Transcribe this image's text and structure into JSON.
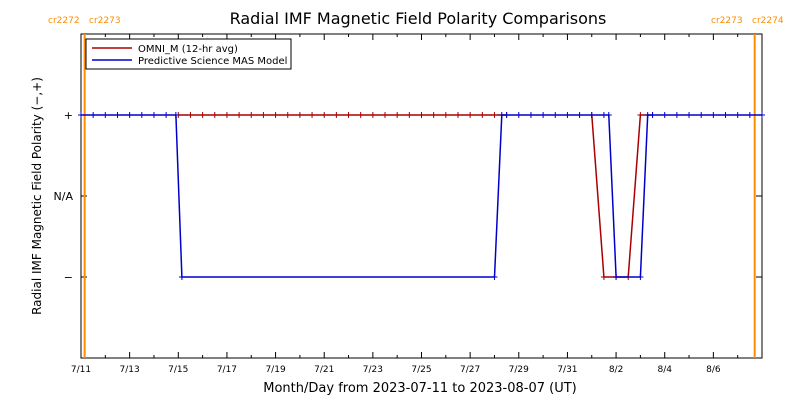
{
  "colors": {
    "omni": "#aa0000",
    "model": "#0000cc",
    "cr_line": "#ff8c00",
    "axis": "#000000"
  },
  "chart_data": {
    "type": "line",
    "title": "Radial IMF Magnetic Field Polarity Comparisons",
    "xlabel": "Month/Day from 2023-07-11 to 2023-08-07 (UT)",
    "ylabel": "Radial IMF Magnetic Field Polarity (−,+)",
    "x_start": "2023-07-11",
    "x_end": "2023-08-08",
    "xlim_days": [
      0,
      28
    ],
    "x_tick_labels": [
      "7/11",
      "7/13",
      "7/15",
      "7/17",
      "7/19",
      "7/21",
      "7/23",
      "7/25",
      "7/27",
      "7/29",
      "7/31",
      "8/2",
      "8/4",
      "8/6"
    ],
    "x_tick_days": [
      0,
      2,
      4,
      6,
      8,
      10,
      12,
      14,
      16,
      18,
      20,
      22,
      24,
      26
    ],
    "ylim": [
      -2,
      2
    ],
    "y_ticks": [
      {
        "value": 1,
        "label": "+"
      },
      {
        "value": 0,
        "label": "N/A"
      },
      {
        "value": -1,
        "label": "−"
      }
    ],
    "legend_position": "top-left",
    "carrington_markers": [
      {
        "day": 0.15,
        "left_label": "cr2272",
        "right_label": "cr2273"
      },
      {
        "day": 27.7,
        "left_label": "cr2273",
        "right_label": "cr2274"
      }
    ],
    "series": [
      {
        "name": "OMNI_M (12-hr avg)",
        "marker": "plus",
        "points": [
          [
            4.0,
            1
          ],
          [
            4.5,
            1
          ],
          [
            5.0,
            1
          ],
          [
            5.5,
            1
          ],
          [
            6.0,
            1
          ],
          [
            6.5,
            1
          ],
          [
            7.0,
            1
          ],
          [
            7.5,
            1
          ],
          [
            8.0,
            1
          ],
          [
            8.5,
            1
          ],
          [
            9.0,
            1
          ],
          [
            9.5,
            1
          ],
          [
            10.0,
            1
          ],
          [
            10.5,
            1
          ],
          [
            11.0,
            1
          ],
          [
            11.5,
            1
          ],
          [
            12.0,
            1
          ],
          [
            12.5,
            1
          ],
          [
            13.0,
            1
          ],
          [
            13.5,
            1
          ],
          [
            14.0,
            1
          ],
          [
            14.5,
            1
          ],
          [
            15.0,
            1
          ],
          [
            15.5,
            1
          ],
          [
            16.0,
            1
          ],
          [
            16.5,
            1
          ],
          [
            17.0,
            1
          ],
          [
            17.5,
            1
          ],
          null,
          [
            21.0,
            1
          ],
          [
            21.5,
            -1
          ],
          [
            22.0,
            -1
          ],
          [
            22.5,
            -1
          ],
          [
            23.0,
            1
          ],
          [
            23.5,
            1
          ],
          null,
          [
            28.0,
            1
          ]
        ]
      },
      {
        "name": "Predictive Science MAS Model",
        "marker": "plus",
        "points": [
          [
            0.0,
            1
          ],
          [
            0.5,
            1
          ],
          [
            1.0,
            1
          ],
          [
            1.5,
            1
          ],
          [
            2.0,
            1
          ],
          [
            2.5,
            1
          ],
          [
            3.0,
            1
          ],
          [
            3.5,
            1
          ],
          [
            3.9,
            1
          ],
          [
            4.15,
            -1
          ],
          [
            17.0,
            -1
          ],
          [
            17.3,
            1
          ],
          [
            17.5,
            1
          ],
          [
            18.0,
            1
          ],
          [
            18.5,
            1
          ],
          [
            19.0,
            1
          ],
          [
            19.5,
            1
          ],
          [
            20.0,
            1
          ],
          [
            20.5,
            1
          ],
          [
            21.0,
            1
          ],
          [
            21.5,
            1
          ],
          [
            21.7,
            1
          ],
          [
            22.0,
            -1
          ],
          [
            23.0,
            -1
          ],
          [
            23.3,
            1
          ],
          [
            23.5,
            1
          ],
          [
            24.0,
            1
          ],
          [
            24.5,
            1
          ],
          [
            25.0,
            1
          ],
          [
            25.5,
            1
          ],
          [
            26.0,
            1
          ],
          [
            26.5,
            1
          ],
          [
            27.0,
            1
          ],
          [
            27.5,
            1
          ],
          [
            28.0,
            1
          ]
        ]
      }
    ]
  }
}
